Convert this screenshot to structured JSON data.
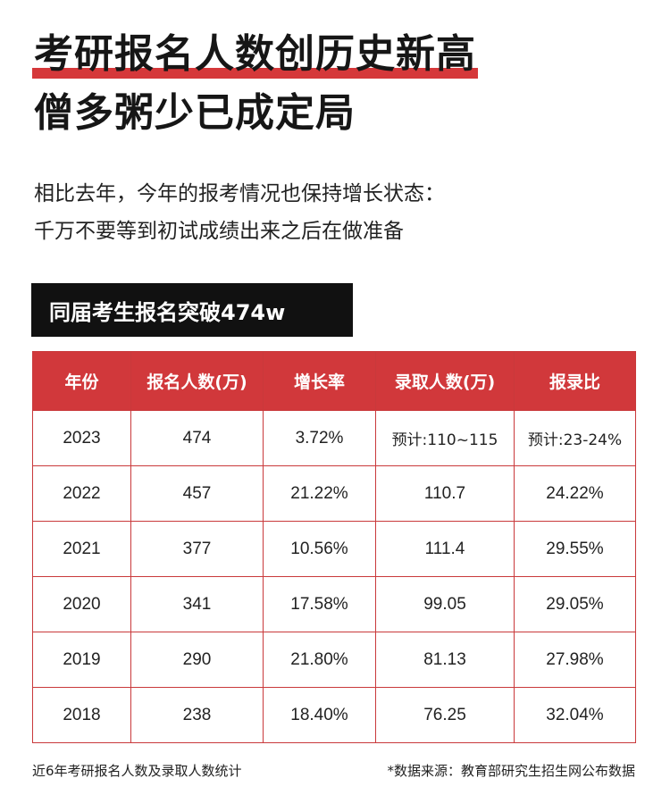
{
  "title": {
    "line1": "考研报名人数创历史新高",
    "line2": "僧多粥少已成定局"
  },
  "subtitle": {
    "line1": "相比去年，今年的报考情况也保持增长状态：",
    "line2": "千万不要等到初试成绩出来之后在做准备"
  },
  "section_label": "同届考生报名突破474w",
  "table": {
    "headers": [
      "年份",
      "报名人数(万)",
      "增长率",
      "录取人数(万)",
      "报录比"
    ],
    "rows": [
      [
        "2023",
        "474",
        "3.72%",
        "预计:110~115",
        "预计:23-24%"
      ],
      [
        "2022",
        "457",
        "21.22%",
        "110.7",
        "24.22%"
      ],
      [
        "2021",
        "377",
        "10.56%",
        "111.4",
        "29.55%"
      ],
      [
        "2020",
        "341",
        "17.58%",
        "99.05",
        "29.05%"
      ],
      [
        "2019",
        "290",
        "21.80%",
        "81.13",
        "27.98%"
      ],
      [
        "2018",
        "238",
        "18.40%",
        "76.25",
        "32.04%"
      ]
    ]
  },
  "footer": {
    "left": "近6年考研报名人数及录取人数统计",
    "right": "*数据来源：教育部研究生招生网公布数据"
  },
  "colors": {
    "accent_red": "#d1383b",
    "label_bg": "#111111"
  }
}
